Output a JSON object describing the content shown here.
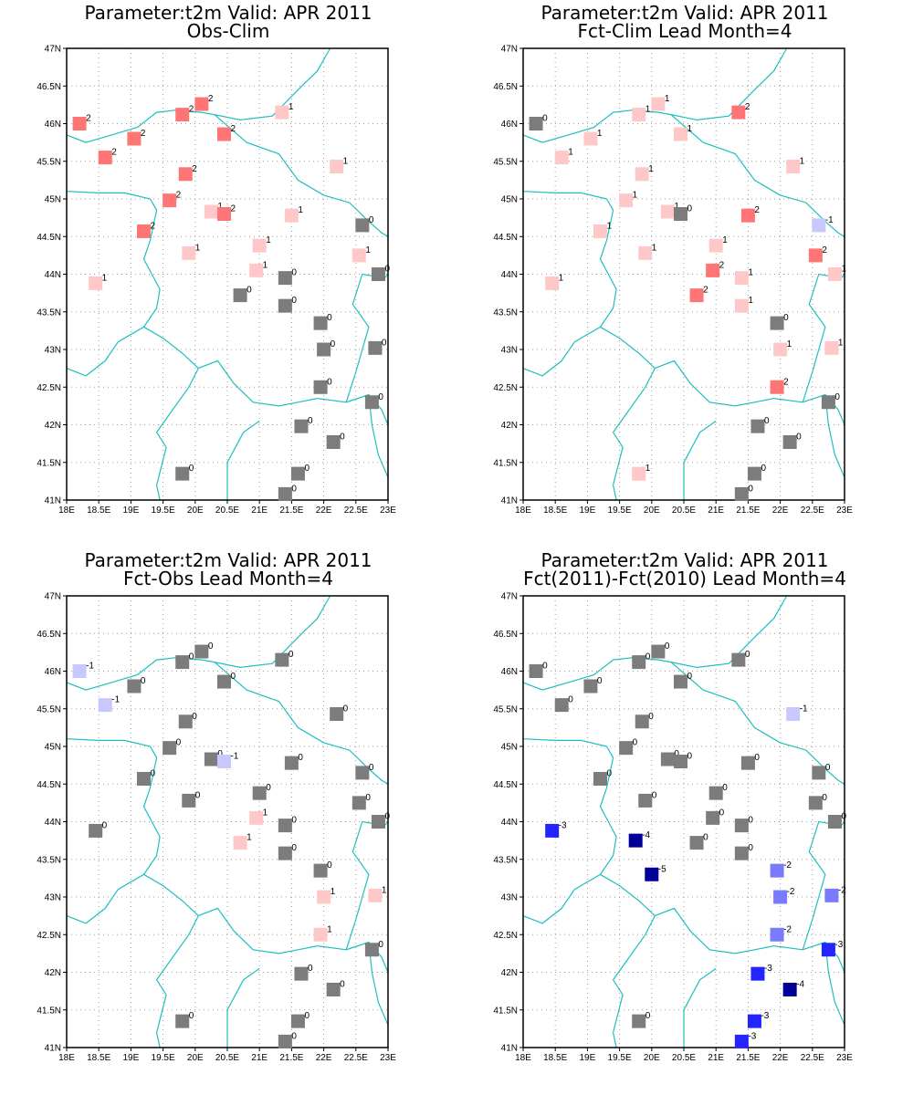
{
  "colors": {
    "coast": "#1fbfbf",
    "frame": "#000000",
    "grid": "#a0a0a0",
    "scale": {
      "-5": "#00009a",
      "-4": "#000096",
      "-3": "#2424ff",
      "-2": "#7a7aff",
      "-1": "#c8c8ff",
      "0": "#7c7c7c",
      "1": "#ffc8c8",
      "2": "#ff7474"
    }
  },
  "axes": {
    "lon_range": [
      18,
      23
    ],
    "lat_range": [
      41,
      47
    ],
    "lon_ticks": [
      "18E",
      "18.5E",
      "19E",
      "19.5E",
      "20E",
      "20.5E",
      "21E",
      "21.5E",
      "22E",
      "22.5E",
      "23E"
    ],
    "lat_ticks": [
      "41N",
      "41.5N",
      "42N",
      "42.5N",
      "43N",
      "43.5N",
      "44N",
      "44.5N",
      "45N",
      "45.5N",
      "46N",
      "46.5N",
      "47N"
    ]
  },
  "stations": [
    [
      18.2,
      46.0
    ],
    [
      18.6,
      45.55
    ],
    [
      19.05,
      45.8
    ],
    [
      19.8,
      46.12
    ],
    [
      20.1,
      46.26
    ],
    [
      20.45,
      45.86
    ],
    [
      21.35,
      46.15
    ],
    [
      22.2,
      45.43
    ],
    [
      19.85,
      45.33
    ],
    [
      19.6,
      44.98
    ],
    [
      20.25,
      44.83
    ],
    [
      20.45,
      44.8
    ],
    [
      21.5,
      44.78
    ],
    [
      22.6,
      44.65
    ],
    [
      19.2,
      44.57
    ],
    [
      19.9,
      44.28
    ],
    [
      21.0,
      44.38
    ],
    [
      22.55,
      44.25
    ],
    [
      22.85,
      44.0
    ],
    [
      18.45,
      43.88
    ],
    [
      20.95,
      44.05
    ],
    [
      21.4,
      43.95
    ],
    [
      20.7,
      43.72
    ],
    [
      21.4,
      43.58
    ],
    [
      21.95,
      43.35
    ],
    [
      22.0,
      43.0
    ],
    [
      22.8,
      43.02
    ],
    [
      21.95,
      42.5
    ],
    [
      22.75,
      42.3
    ],
    [
      21.65,
      41.98
    ],
    [
      22.15,
      41.77
    ],
    [
      19.8,
      41.35
    ],
    [
      21.6,
      41.35
    ],
    [
      21.4,
      41.08
    ]
  ],
  "panels": [
    {
      "title1": "Parameter:t2m Valid: APR 2011",
      "title2": "Obs-Clim",
      "values": [
        2,
        2,
        2,
        2,
        2,
        2,
        1,
        1,
        2,
        2,
        1,
        2,
        1,
        0,
        2,
        1,
        1,
        1,
        0,
        1,
        1,
        0,
        0,
        0,
        0,
        0,
        0,
        0,
        0,
        0,
        0,
        0,
        0,
        0
      ]
    },
    {
      "title1": "Parameter:t2m Valid: APR 2011",
      "title2": "Fct-Clim Lead Month=4",
      "values": [
        0,
        1,
        1,
        1,
        1,
        1,
        2,
        1,
        1,
        1,
        1,
        0,
        2,
        -1,
        1,
        1,
        1,
        2,
        1,
        1,
        2,
        1,
        2,
        1,
        0,
        1,
        1,
        2,
        0,
        0,
        0,
        1,
        0,
        0
      ]
    },
    {
      "title1": "Parameter:t2m Valid: APR 2011",
      "title2": "Fct-Obs Lead Month=4",
      "values": [
        -1,
        -1,
        0,
        0,
        0,
        0,
        0,
        0,
        0,
        0,
        0,
        -1,
        0,
        0,
        0,
        0,
        0,
        0,
        0,
        0,
        1,
        0,
        1,
        0,
        0,
        1,
        1,
        1,
        0,
        0,
        0,
        0,
        0,
        0
      ]
    },
    {
      "title1": "Parameter:t2m Valid: APR 2011",
      "title2": "Fct(2011)-Fct(2010) Lead Month=4",
      "values": [
        0,
        0,
        0,
        0,
        0,
        0,
        0,
        -1,
        0,
        0,
        0,
        0,
        0,
        0,
        0,
        0,
        0,
        0,
        0,
        -3,
        0,
        0,
        0,
        0,
        -2,
        -2,
        -2,
        -2,
        -3,
        -3,
        -4,
        0,
        -3,
        -3
      ],
      "extra": [
        [
          19.75,
          43.75,
          -4
        ],
        [
          20.0,
          43.3,
          -5
        ]
      ]
    }
  ]
}
